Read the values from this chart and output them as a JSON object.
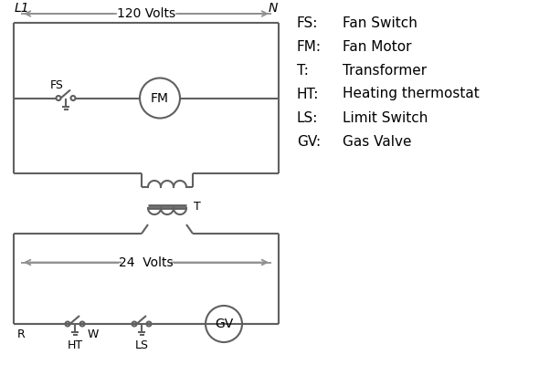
{
  "background_color": "#ffffff",
  "line_color": "#606060",
  "arrow_color": "#909090",
  "text_color": "#000000",
  "line_width": 1.5,
  "legend_items": [
    [
      "FS:",
      "Fan Switch"
    ],
    [
      "FM:",
      "Fan Motor"
    ],
    [
      "T:",
      "Transformer"
    ],
    [
      "HT:",
      "Heating thermostat"
    ],
    [
      "LS:",
      "Limit Switch"
    ],
    [
      "GV:",
      "Gas Valve"
    ]
  ],
  "L1_label": "L1",
  "N_label": "N",
  "volts120_label": "120 Volts",
  "volts24_label": "24  Volts",
  "T_label": "T",
  "R_label": "R",
  "W_label": "W",
  "HT_label": "HT",
  "LS_label": "LS",
  "FS_label": "FS",
  "FM_label": "FM",
  "GV_label": "GV"
}
